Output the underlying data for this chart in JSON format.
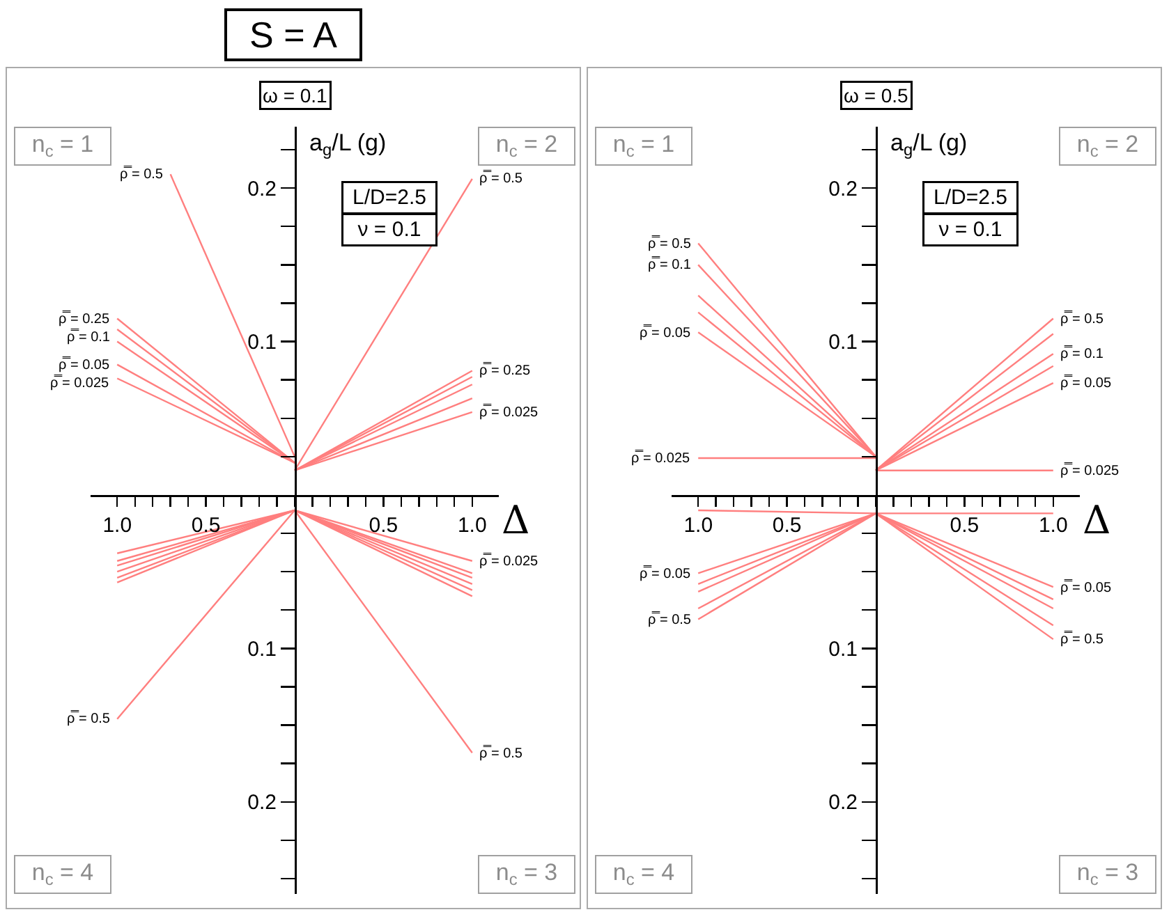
{
  "chart_data": [
    {
      "type": "line",
      "title": "S = A",
      "subtitle": "ω = 0.1",
      "xlabel": "Δ",
      "ylabel": "a$_{g}$/L (g)",
      "legend": false,
      "annotations": [
        "n$_{c}$ = 1",
        "n$_{c}$ = 2",
        "n$_{c}$ = 3",
        "n$_{c}$ = 4",
        "L/D=2.5",
        "ν = 0.1"
      ],
      "xlim": [
        -1.15,
        1.15
      ],
      "ylim": [
        -0.26,
        0.24
      ],
      "xticks": [
        {
          "value": -1,
          "label": "1.0"
        },
        {
          "value": -0.9,
          "label": null
        },
        {
          "value": -0.8,
          "label": null
        },
        {
          "value": -0.7,
          "label": null
        },
        {
          "value": -0.6,
          "label": null
        },
        {
          "value": -0.5,
          "label": "0.5"
        },
        {
          "value": -0.4,
          "label": null
        },
        {
          "value": -0.3,
          "label": null
        },
        {
          "value": -0.2,
          "label": null
        },
        {
          "value": -0.1,
          "label": null
        },
        {
          "value": 0,
          "label": null
        },
        {
          "value": 0.1,
          "label": null
        },
        {
          "value": 0.2,
          "label": null
        },
        {
          "value": 0.3,
          "label": null
        },
        {
          "value": 0.4,
          "label": null
        },
        {
          "value": 0.5,
          "label": "0.5"
        },
        {
          "value": 0.6,
          "label": null
        },
        {
          "value": 0.7,
          "label": null
        },
        {
          "value": 0.8,
          "label": null
        },
        {
          "value": 0.9,
          "label": null
        },
        {
          "value": 1,
          "label": "1.0"
        }
      ],
      "yticks": [
        {
          "value": -0.25,
          "label": null
        },
        {
          "value": -0.225,
          "label": null
        },
        {
          "value": -0.2,
          "label": "0.2"
        },
        {
          "value": -0.175,
          "label": null
        },
        {
          "value": -0.15,
          "label": null
        },
        {
          "value": -0.125,
          "label": null
        },
        {
          "value": -0.1,
          "label": "0.1"
        },
        {
          "value": -0.075,
          "label": null
        },
        {
          "value": -0.05,
          "label": null
        },
        {
          "value": -0.025,
          "label": null
        },
        {
          "value": 0.025,
          "label": null
        },
        {
          "value": 0.05,
          "label": null
        },
        {
          "value": 0.075,
          "label": null
        },
        {
          "value": 0.1,
          "label": "0.1"
        },
        {
          "value": 0.125,
          "label": null
        },
        {
          "value": 0.15,
          "label": null
        },
        {
          "value": 0.175,
          "label": null
        },
        {
          "value": 0.2,
          "label": "0.2"
        },
        {
          "value": 0.225,
          "label": null
        }
      ],
      "series": [
        {
          "name": "ρ̿ = 0.5",
          "color": "#ff7f7f",
          "x": [
            -0.7,
            0
          ],
          "values": [
            0.209,
            0.025
          ]
        },
        {
          "name": "ρ̿ = 0.25",
          "color": "#ff7f7f",
          "x": [
            -1,
            0
          ],
          "values": [
            0.115,
            0.021
          ]
        },
        {
          "name": "ρ̿ = 0.1",
          "color": "#ff7f7f",
          "x": [
            -1,
            0
          ],
          "values": [
            0.108,
            0.021
          ]
        },
        {
          "color": "#ff7f7f",
          "x": [
            -1,
            0
          ],
          "values": [
            0.1,
            0.021
          ]
        },
        {
          "name": "ρ̿ = 0.05",
          "color": "#ff7f7f",
          "x": [
            -1,
            0
          ],
          "values": [
            0.085,
            0.021
          ]
        },
        {
          "name": "ρ̿ = 0.025",
          "color": "#ff7f7f",
          "x": [
            -1,
            0
          ],
          "values": [
            0.076,
            0.021
          ]
        },
        {
          "name": "ρ̿ = 0.5",
          "color": "#ff7f7f",
          "x": [
            0,
            1
          ],
          "values": [
            0.016,
            0.206
          ]
        },
        {
          "name": "ρ̿ = 0.25",
          "color": "#ff7f7f",
          "x": [
            0,
            1
          ],
          "values": [
            0.016,
            0.081
          ]
        },
        {
          "color": "#ff7f7f",
          "x": [
            0,
            1
          ],
          "values": [
            0.016,
            0.077
          ]
        },
        {
          "color": "#ff7f7f",
          "x": [
            0,
            1
          ],
          "values": [
            0.016,
            0.072
          ]
        },
        {
          "color": "#ff7f7f",
          "x": [
            0,
            1
          ],
          "values": [
            0.016,
            0.063
          ]
        },
        {
          "name": "ρ̿ = 0.025",
          "color": "#ff7f7f",
          "x": [
            0,
            1
          ],
          "values": [
            0.016,
            0.054
          ]
        },
        {
          "color": "#ff7f7f",
          "x": [
            -1,
            0
          ],
          "values": [
            -0.038,
            -0.01
          ]
        },
        {
          "color": "#ff7f7f",
          "x": [
            -1,
            0
          ],
          "values": [
            -0.043,
            -0.01
          ]
        },
        {
          "color": "#ff7f7f",
          "x": [
            -1,
            0
          ],
          "values": [
            -0.046,
            -0.01
          ]
        },
        {
          "color": "#ff7f7f",
          "x": [
            -1,
            0
          ],
          "values": [
            -0.05,
            -0.01
          ]
        },
        {
          "color": "#ff7f7f",
          "x": [
            -1,
            0
          ],
          "values": [
            -0.054,
            -0.01
          ]
        },
        {
          "color": "#ff7f7f",
          "x": [
            -1,
            0
          ],
          "values": [
            -0.057,
            -0.01
          ]
        },
        {
          "name": "ρ̿ = 0.5",
          "color": "#ff7f7f",
          "x": [
            -1,
            0
          ],
          "values": [
            -0.146,
            -0.01
          ]
        },
        {
          "name": "ρ̿ = 0.025",
          "color": "#ff7f7f",
          "x": [
            0,
            1
          ],
          "values": [
            -0.01,
            -0.043
          ]
        },
        {
          "color": "#ff7f7f",
          "x": [
            0,
            1
          ],
          "values": [
            -0.01,
            -0.051
          ]
        },
        {
          "color": "#ff7f7f",
          "x": [
            0,
            1
          ],
          "values": [
            -0.01,
            -0.054
          ]
        },
        {
          "color": "#ff7f7f",
          "x": [
            0,
            1
          ],
          "values": [
            -0.01,
            -0.058
          ]
        },
        {
          "color": "#ff7f7f",
          "x": [
            0,
            1
          ],
          "values": [
            -0.01,
            -0.062
          ]
        },
        {
          "color": "#ff7f7f",
          "x": [
            0,
            1
          ],
          "values": [
            -0.01,
            -0.066
          ]
        },
        {
          "name": "ρ̿ = 0.5",
          "color": "#ff7f7f",
          "x": [
            0,
            1
          ],
          "values": [
            -0.01,
            -0.168
          ]
        }
      ]
    },
    {
      "type": "line",
      "subtitle": "ω = 0.5",
      "xlabel": "Δ",
      "ylabel": "a$_{g}$/L (g)",
      "legend": false,
      "annotations": [
        "n$_{c}$ = 1",
        "n$_{c}$ = 2",
        "n$_{c}$ = 3",
        "n$_{c}$ = 4",
        "L/D=2.5",
        "ν = 0.1"
      ],
      "xlim": [
        -1.15,
        1.15
      ],
      "ylim": [
        -0.26,
        0.24
      ],
      "xticks": [
        {
          "value": -1,
          "label": "1.0"
        },
        {
          "value": -0.9,
          "label": null
        },
        {
          "value": -0.8,
          "label": null
        },
        {
          "value": -0.7,
          "label": null
        },
        {
          "value": -0.6,
          "label": null
        },
        {
          "value": -0.5,
          "label": "0.5"
        },
        {
          "value": -0.4,
          "label": null
        },
        {
          "value": -0.3,
          "label": null
        },
        {
          "value": -0.2,
          "label": null
        },
        {
          "value": -0.1,
          "label": null
        },
        {
          "value": 0,
          "label": null
        },
        {
          "value": 0.1,
          "label": null
        },
        {
          "value": 0.2,
          "label": null
        },
        {
          "value": 0.3,
          "label": null
        },
        {
          "value": 0.4,
          "label": null
        },
        {
          "value": 0.5,
          "label": "0.5"
        },
        {
          "value": 0.6,
          "label": null
        },
        {
          "value": 0.7,
          "label": null
        },
        {
          "value": 0.8,
          "label": null
        },
        {
          "value": 0.9,
          "label": null
        },
        {
          "value": 1,
          "label": "1.0"
        }
      ],
      "yticks": [
        {
          "value": -0.25,
          "label": null
        },
        {
          "value": -0.225,
          "label": null
        },
        {
          "value": -0.2,
          "label": "0.2"
        },
        {
          "value": -0.175,
          "label": null
        },
        {
          "value": -0.15,
          "label": null
        },
        {
          "value": -0.125,
          "label": null
        },
        {
          "value": -0.1,
          "label": "0.1"
        },
        {
          "value": -0.075,
          "label": null
        },
        {
          "value": -0.05,
          "label": null
        },
        {
          "value": -0.025,
          "label": null
        },
        {
          "value": 0.025,
          "label": null
        },
        {
          "value": 0.05,
          "label": null
        },
        {
          "value": 0.075,
          "label": null
        },
        {
          "value": 0.1,
          "label": "0.1"
        },
        {
          "value": 0.125,
          "label": null
        },
        {
          "value": 0.15,
          "label": null
        },
        {
          "value": 0.175,
          "label": null
        },
        {
          "value": 0.2,
          "label": "0.2"
        },
        {
          "value": 0.225,
          "label": null
        }
      ],
      "series": [
        {
          "name": "ρ̿ = 0.5",
          "color": "#ff7f7f",
          "x": [
            -1,
            0
          ],
          "values": [
            0.164,
            0.025
          ]
        },
        {
          "name": "ρ̿ = 0.1",
          "color": "#ff7f7f",
          "x": [
            -1,
            0
          ],
          "values": [
            0.15,
            0.025
          ]
        },
        {
          "color": "#ff7f7f",
          "x": [
            -1,
            0
          ],
          "values": [
            0.13,
            0.025
          ]
        },
        {
          "color": "#ff7f7f",
          "x": [
            -1,
            0
          ],
          "values": [
            0.119,
            0.025
          ]
        },
        {
          "name": "ρ̿ = 0.05",
          "color": "#ff7f7f",
          "x": [
            -1,
            0
          ],
          "values": [
            0.106,
            0.025
          ]
        },
        {
          "name": "ρ̿ = 0.025",
          "color": "#ff7f7f",
          "x": [
            -1,
            0
          ],
          "values": [
            0.024,
            0.024
          ]
        },
        {
          "name": "ρ̿ = 0.5",
          "color": "#ff7f7f",
          "x": [
            0,
            1
          ],
          "values": [
            0.016,
            0.115
          ]
        },
        {
          "color": "#ff7f7f",
          "x": [
            0,
            1
          ],
          "values": [
            0.016,
            0.105
          ]
        },
        {
          "name": "ρ̿ = 0.1",
          "color": "#ff7f7f",
          "x": [
            0,
            1
          ],
          "values": [
            0.016,
            0.092
          ]
        },
        {
          "color": "#ff7f7f",
          "x": [
            0,
            1
          ],
          "values": [
            0.016,
            0.084
          ]
        },
        {
          "name": "ρ̿ = 0.05",
          "color": "#ff7f7f",
          "x": [
            0,
            1
          ],
          "values": [
            0.016,
            0.073
          ]
        },
        {
          "name": "ρ̿ = 0.025",
          "color": "#ff7f7f",
          "x": [
            0,
            1
          ],
          "values": [
            0.016,
            0.016
          ]
        },
        {
          "color": "#ff7f7f",
          "x": [
            -1,
            0,
            1
          ],
          "values": [
            -0.01,
            -0.012,
            -0.012
          ]
        },
        {
          "name": "ρ̿ = 0.05",
          "color": "#ff7f7f",
          "x": [
            -1,
            0
          ],
          "values": [
            -0.051,
            -0.012
          ]
        },
        {
          "color": "#ff7f7f",
          "x": [
            -1,
            0
          ],
          "values": [
            -0.058,
            -0.012
          ]
        },
        {
          "color": "#ff7f7f",
          "x": [
            -1,
            0
          ],
          "values": [
            -0.063,
            -0.012
          ]
        },
        {
          "color": "#ff7f7f",
          "x": [
            -1,
            0
          ],
          "values": [
            -0.074,
            -0.012
          ]
        },
        {
          "name": "ρ̿ = 0.5",
          "color": "#ff7f7f",
          "x": [
            -1,
            0
          ],
          "values": [
            -0.081,
            -0.012
          ]
        },
        {
          "name": "ρ̿ = 0.05",
          "color": "#ff7f7f",
          "x": [
            0,
            1
          ],
          "values": [
            -0.012,
            -0.06
          ]
        },
        {
          "color": "#ff7f7f",
          "x": [
            0,
            1
          ],
          "values": [
            -0.012,
            -0.068
          ]
        },
        {
          "color": "#ff7f7f",
          "x": [
            0,
            1
          ],
          "values": [
            -0.012,
            -0.074
          ]
        },
        {
          "color": "#ff7f7f",
          "x": [
            0,
            1
          ],
          "values": [
            -0.012,
            -0.085
          ]
        },
        {
          "name": "ρ̿ = 0.5",
          "color": "#ff7f7f",
          "x": [
            0,
            1
          ],
          "values": [
            -0.012,
            -0.094
          ]
        }
      ]
    }
  ]
}
